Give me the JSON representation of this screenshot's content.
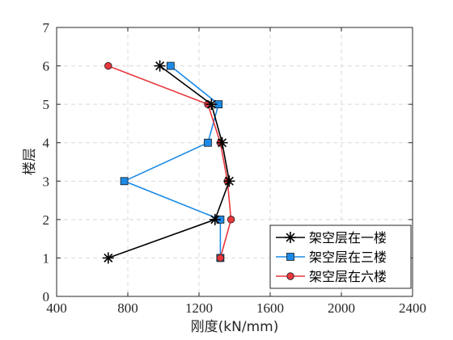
{
  "chart_data": {
    "type": "line",
    "xlabel": "刚度(kN/mm)",
    "ylabel": "楼层",
    "xlim": [
      400,
      2400
    ],
    "ylim": [
      0,
      7
    ],
    "xticks": [
      400,
      800,
      1200,
      1600,
      2000,
      2400
    ],
    "yticks": [
      0,
      1,
      2,
      3,
      4,
      5,
      6,
      7
    ],
    "grid": true,
    "legend_position": "bottom-right",
    "series": [
      {
        "name": "架空层在一楼",
        "color": "#000000",
        "marker": "asterisk",
        "points": [
          [
            690,
            1
          ],
          [
            1290,
            2
          ],
          [
            1370,
            3
          ],
          [
            1330,
            4
          ],
          [
            1270,
            5
          ],
          [
            980,
            6
          ]
        ]
      },
      {
        "name": "架空层在三楼",
        "color": "#1c8ae6",
        "marker": "square",
        "points": [
          [
            1320,
            1
          ],
          [
            1320,
            2
          ],
          [
            780,
            3
          ],
          [
            1250,
            4
          ],
          [
            1310,
            5
          ],
          [
            1040,
            6
          ]
        ]
      },
      {
        "name": "架空层在六楼",
        "color": "#e8383d",
        "marker": "circle",
        "points": [
          [
            1320,
            1
          ],
          [
            1380,
            2
          ],
          [
            1360,
            3
          ],
          [
            1320,
            4
          ],
          [
            1250,
            5
          ],
          [
            690,
            6
          ]
        ]
      }
    ]
  }
}
